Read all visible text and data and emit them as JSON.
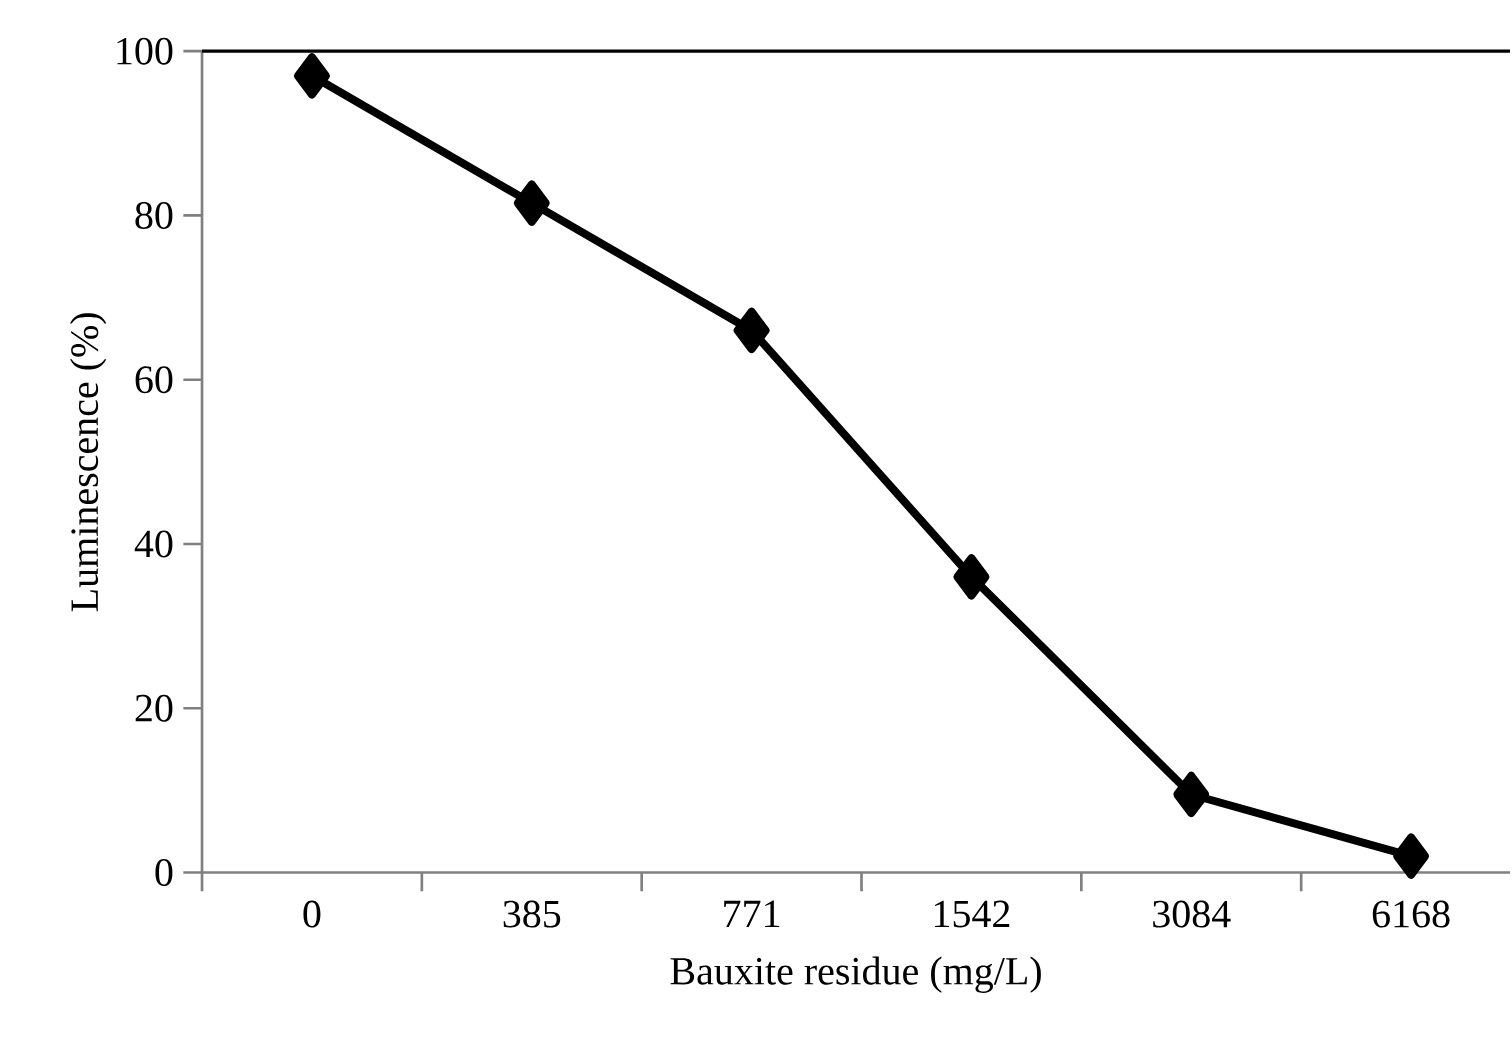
{
  "chart_data": {
    "type": "line",
    "xlabel": "Bauxite residue (mg/L)",
    "ylabel": "Luminescence (%)",
    "categories": [
      "0",
      "385",
      "771",
      "1542",
      "3084",
      "6168"
    ],
    "series": [
      {
        "color": "#000000",
        "values": [
          97,
          81.5,
          66,
          36,
          9.5,
          2
        ]
      }
    ],
    "marker": "diamond",
    "line_style": "solid",
    "ylim": [
      0,
      100
    ],
    "yticks": [
      0,
      20,
      40,
      60,
      80,
      100
    ]
  }
}
